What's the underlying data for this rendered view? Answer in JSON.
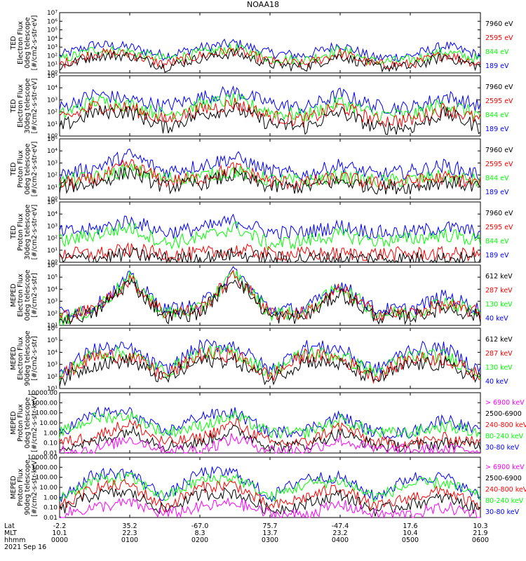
{
  "title": "NOAA18",
  "colors": {
    "blue": "#0000ff",
    "red": "#ff0000",
    "green": "#00ff00",
    "black": "#000000",
    "magenta": "#ff00ff"
  },
  "chart_data": [
    {
      "type": "line",
      "ylabel": [
        "TED",
        "Electron Flux",
        "0deg telescope",
        "[#/cm2-s-str-eV]"
      ],
      "yscale": "log",
      "ylim": [
        1,
        10000000
      ],
      "yticks": [
        "10^0",
        "10^1",
        "10^2",
        "10^3",
        "10^4",
        "10^5",
        "10^6",
        "10^7"
      ],
      "series": [
        {
          "name": "7960 eV",
          "color": "#000000"
        },
        {
          "name": "2595 eV",
          "color": "#ff0000"
        },
        {
          "name": "844 eV",
          "color": "#00ff00"
        },
        {
          "name": "189 eV",
          "color": "#0000ff"
        }
      ],
      "x": [
        0,
        30,
        60,
        90,
        120,
        150,
        180,
        210,
        240,
        270,
        300,
        330,
        360
      ],
      "values": {
        "189 eV": [
          100,
          2000,
          1000,
          100,
          800,
          3000,
          200,
          100,
          2000,
          50,
          100,
          1500,
          100
        ],
        "844 eV": [
          30,
          500,
          300,
          40,
          200,
          800,
          50,
          30,
          500,
          20,
          30,
          300,
          30
        ],
        "2595 eV": [
          10,
          200,
          150,
          10,
          100,
          400,
          20,
          10,
          200,
          10,
          10,
          150,
          10
        ],
        "7960 eV": [
          5,
          100,
          100,
          5,
          50,
          200,
          10,
          5,
          100,
          5,
          5,
          80,
          5
        ]
      }
    },
    {
      "type": "line",
      "ylabel": [
        "TED",
        "Electron Flux",
        "30deg telescope",
        "[#/cm2-s-str-eV]"
      ],
      "yscale": "log",
      "ylim": [
        1,
        100000
      ],
      "yticks": [
        "10^0",
        "10^1",
        "10^2",
        "10^3",
        "10^4",
        "10^5"
      ],
      "series": [
        {
          "name": "7960 eV",
          "color": "#000000"
        },
        {
          "name": "2595 eV",
          "color": "#ff0000"
        },
        {
          "name": "844 eV",
          "color": "#00ff00"
        },
        {
          "name": "189 eV",
          "color": "#0000ff"
        }
      ],
      "x": [
        0,
        30,
        60,
        90,
        120,
        150,
        180,
        210,
        240,
        270,
        300,
        330,
        360
      ],
      "values": {
        "189 eV": [
          200,
          3000,
          1000,
          300,
          1500,
          5000,
          500,
          200,
          3000,
          300,
          200,
          2000,
          300
        ],
        "844 eV": [
          50,
          800,
          400,
          60,
          400,
          1000,
          100,
          50,
          700,
          60,
          50,
          500,
          50
        ],
        "2595 eV": [
          20,
          300,
          200,
          20,
          150,
          500,
          40,
          20,
          300,
          20,
          20,
          200,
          20
        ],
        "7960 eV": [
          5,
          100,
          100,
          5,
          60,
          200,
          10,
          5,
          100,
          5,
          5,
          80,
          5
        ]
      }
    },
    {
      "type": "line",
      "ylabel": [
        "TED",
        "Proton Flux",
        "0deg telescope",
        "[#/cm2-s-str-eV]"
      ],
      "yscale": "log",
      "ylim": [
        1,
        100000
      ],
      "yticks": [
        "10^0",
        "10^1",
        "10^2",
        "10^3",
        "10^4",
        "10^5"
      ],
      "series": [
        {
          "name": "7960 eV",
          "color": "#000000"
        },
        {
          "name": "2595 eV",
          "color": "#ff0000"
        },
        {
          "name": "844 eV",
          "color": "#00ff00"
        },
        {
          "name": "189 eV",
          "color": "#0000ff"
        }
      ],
      "x": [
        0,
        30,
        60,
        90,
        120,
        150,
        180,
        210,
        240,
        270,
        300,
        330,
        360
      ],
      "values": {
        "189 eV": [
          100,
          400,
          5000,
          200,
          600,
          3000,
          200,
          100,
          700,
          100,
          200,
          600,
          100
        ],
        "844 eV": [
          30,
          60,
          300,
          50,
          80,
          200,
          40,
          30,
          80,
          30,
          40,
          80,
          30
        ],
        "2595 eV": [
          20,
          40,
          800,
          30,
          50,
          400,
          30,
          20,
          60,
          20,
          30,
          60,
          20
        ],
        "7960 eV": [
          10,
          20,
          200,
          10,
          20,
          100,
          10,
          10,
          30,
          10,
          10,
          30,
          10
        ]
      }
    },
    {
      "type": "line",
      "ylabel": [
        "TED",
        "Proton Flux",
        "30deg telescope",
        "[#/cm2-s-str-eV]"
      ],
      "yscale": "log",
      "ylim": [
        1,
        100000
      ],
      "yticks": [
        "10^0",
        "10^1",
        "10^2",
        "10^3",
        "10^4",
        "10^5"
      ],
      "series": [
        {
          "name": "7960 eV",
          "color": "#000000"
        },
        {
          "name": "2595 eV",
          "color": "#ff0000"
        },
        {
          "name": "844 eV",
          "color": "#00ff00"
        },
        {
          "name": "189 eV",
          "color": "#0000ff"
        }
      ],
      "x": [
        0,
        30,
        60,
        90,
        120,
        150,
        180,
        210,
        240,
        270,
        300,
        330,
        360
      ],
      "values": {
        "189 eV": [
          300,
          500,
          3000,
          300,
          600,
          3000,
          300,
          300,
          1000,
          300,
          300,
          800,
          300
        ],
        "844 eV": [
          50,
          200,
          800,
          40,
          100,
          800,
          30,
          60,
          200,
          60,
          80,
          200,
          60
        ],
        "2595 eV": [
          5,
          5,
          10,
          5,
          5,
          10,
          5,
          5,
          5,
          5,
          5,
          5,
          5
        ],
        "7960 eV": [
          2,
          2,
          5,
          2,
          2,
          5,
          2,
          2,
          2,
          2,
          2,
          2,
          2
        ]
      }
    },
    {
      "type": "line",
      "ylabel": [
        "MEPED",
        "Electron Flux",
        "0deg telescope",
        "[#/cm2-s-str]"
      ],
      "yscale": "log",
      "ylim": [
        10,
        1000000
      ],
      "yticks": [
        "10^1",
        "10^2",
        "10^3",
        "10^4",
        "10^5",
        "10^6"
      ],
      "series": [
        {
          "name": "612 keV",
          "color": "#000000"
        },
        {
          "name": "287 keV",
          "color": "#ff0000"
        },
        {
          "name": "130 keV",
          "color": "#00ff00"
        },
        {
          "name": "40 keV",
          "color": "#0000ff"
        }
      ],
      "x": [
        0,
        30,
        60,
        90,
        120,
        150,
        180,
        210,
        240,
        270,
        300,
        330,
        360
      ],
      "values": {
        "40 keV": [
          100,
          300,
          100000,
          200,
          400,
          300000,
          200,
          200,
          30000,
          200,
          200,
          3000,
          200
        ],
        "130 keV": [
          30,
          200,
          80000,
          100,
          200,
          200000,
          100,
          100,
          20000,
          100,
          100,
          1000,
          100
        ],
        "287 keV": [
          50,
          200,
          60000,
          100,
          200,
          150000,
          100,
          100,
          10000,
          100,
          100,
          500,
          100
        ],
        "612 keV": [
          30,
          100,
          40000,
          50,
          100,
          100000,
          50,
          50,
          5000,
          50,
          50,
          300,
          50
        ]
      }
    },
    {
      "type": "line",
      "ylabel": [
        "MEPED",
        "Electron Flux",
        "90deg telescope",
        "[#/cm2-s-str]"
      ],
      "yscale": "log",
      "ylim": [
        10,
        1000000
      ],
      "yticks": [
        "10^1",
        "10^2",
        "10^3",
        "10^4",
        "10^5",
        "10^6"
      ],
      "series": [
        {
          "name": "612 keV",
          "color": "#000000"
        },
        {
          "name": "287 keV",
          "color": "#ff0000"
        },
        {
          "name": "130 keV",
          "color": "#00ff00"
        },
        {
          "name": "40 keV",
          "color": "#0000ff"
        }
      ],
      "x": [
        0,
        30,
        60,
        90,
        120,
        150,
        180,
        210,
        240,
        270,
        300,
        330,
        360
      ],
      "values": {
        "40 keV": [
          200,
          20000,
          20000,
          300,
          30000,
          40000,
          300,
          30000,
          20000,
          300,
          20000,
          20000,
          300
        ],
        "130 keV": [
          100,
          8000,
          8000,
          200,
          10000,
          10000,
          200,
          10000,
          5000,
          200,
          5000,
          5000,
          200
        ],
        "287 keV": [
          100,
          5000,
          5000,
          100,
          6000,
          6000,
          100,
          6000,
          3000,
          100,
          3000,
          3000,
          100
        ],
        "612 keV": [
          50,
          1000,
          2000,
          50,
          2000,
          2000,
          50,
          2000,
          1000,
          50,
          1000,
          1000,
          50
        ]
      }
    },
    {
      "type": "line",
      "ylabel": [
        "MEPED",
        "Proton Flux",
        "0deg telescope",
        "[#/cm2-s-str-keV]"
      ],
      "yscale": "log",
      "ylim": [
        0.01,
        10000
      ],
      "yticks": [
        "0.01",
        "0.10",
        "1.00",
        "10.00",
        "100.00",
        "1000.00",
        "10000.00"
      ],
      "series": [
        {
          "name": "> 6900 keV",
          "color": "#ff00ff"
        },
        {
          "name": "2500-6900",
          "color": "#000000"
        },
        {
          "name": "240-800 keV",
          "color": "#ff0000"
        },
        {
          "name": "80-240 keV",
          "color": "#00ff00"
        },
        {
          "name": "30-80 keV",
          "color": "#0000ff"
        }
      ],
      "x": [
        0,
        30,
        60,
        90,
        120,
        150,
        180,
        210,
        240,
        270,
        300,
        330,
        360
      ],
      "values": {
        "30-80 keV": [
          1,
          100,
          100,
          1,
          50,
          100,
          1,
          2,
          50,
          1,
          1,
          30,
          1
        ],
        "80-240 keV": [
          1,
          30,
          50,
          1,
          5,
          50,
          1,
          1,
          20,
          1,
          1,
          5,
          1
        ],
        "240-800 keV": [
          0.1,
          0.5,
          10,
          0.1,
          0.3,
          10,
          0.1,
          0.1,
          5,
          0.1,
          0.1,
          0.3,
          0.1
        ],
        "2500-6900": [
          0.05,
          0.1,
          2,
          0.05,
          0.1,
          2,
          0.05,
          0.05,
          1,
          0.05,
          0.05,
          0.1,
          0.05
        ],
        "> 6900 keV": [
          0.02,
          0.02,
          0.3,
          0.02,
          0.02,
          0.3,
          0.02,
          0.02,
          0.2,
          0.02,
          0.02,
          0.02,
          0.02
        ]
      }
    },
    {
      "type": "line",
      "ylabel": [
        "MEPED",
        "Proton Flux",
        "90deg telescope",
        "[#/cm2-s-str-keV]"
      ],
      "yscale": "log",
      "ylim": [
        0.01,
        10000
      ],
      "yticks": [
        "0.01",
        "0.10",
        "1.00",
        "10.00",
        "100.00",
        "1000.00",
        "10000.00"
      ],
      "series": [
        {
          "name": "> 6900 keV",
          "color": "#ff00ff"
        },
        {
          "name": "2500-6900",
          "color": "#000000"
        },
        {
          "name": "240-800 keV",
          "color": "#ff0000"
        },
        {
          "name": "80-240 keV",
          "color": "#00ff00"
        },
        {
          "name": "30-80 keV",
          "color": "#0000ff"
        }
      ],
      "x": [
        0,
        30,
        60,
        90,
        120,
        150,
        180,
        210,
        240,
        270,
        300,
        330,
        360
      ],
      "values": {
        "30-80 keV": [
          1,
          200,
          300,
          1,
          300,
          300,
          1,
          100,
          100,
          1,
          100,
          100,
          1
        ],
        "80-240 keV": [
          1,
          50,
          100,
          1,
          50,
          100,
          1,
          20,
          50,
          1,
          20,
          30,
          1
        ],
        "240-800 keV": [
          0.1,
          10,
          20,
          0.1,
          10,
          20,
          0.1,
          1,
          10,
          0.1,
          1,
          5,
          0.1
        ],
        "2500-6900": [
          0.05,
          2,
          3,
          0.05,
          2,
          3,
          0.05,
          0.2,
          2,
          0.05,
          0.2,
          1,
          0.05
        ],
        "> 6900 keV": [
          0.02,
          0.1,
          0.3,
          0.02,
          0.1,
          0.3,
          0.02,
          0.02,
          0.2,
          0.02,
          0.02,
          0.1,
          0.02
        ]
      }
    }
  ],
  "xaxis": {
    "rows": [
      {
        "label": "Lat",
        "values": [
          "-2.2",
          "35.2",
          "-67.0",
          "75.7",
          "-47.4",
          "17.6",
          "10.3"
        ]
      },
      {
        "label": "MLT",
        "values": [
          "10.1",
          "22.3",
          "8.3",
          "13.7",
          "23.2",
          "10.4",
          "21.9"
        ]
      },
      {
        "label": "hhmm",
        "values": [
          "0000",
          "0100",
          "0200",
          "0300",
          "0400",
          "0500",
          "0600"
        ]
      }
    ],
    "date": "2021 Sep 16"
  }
}
